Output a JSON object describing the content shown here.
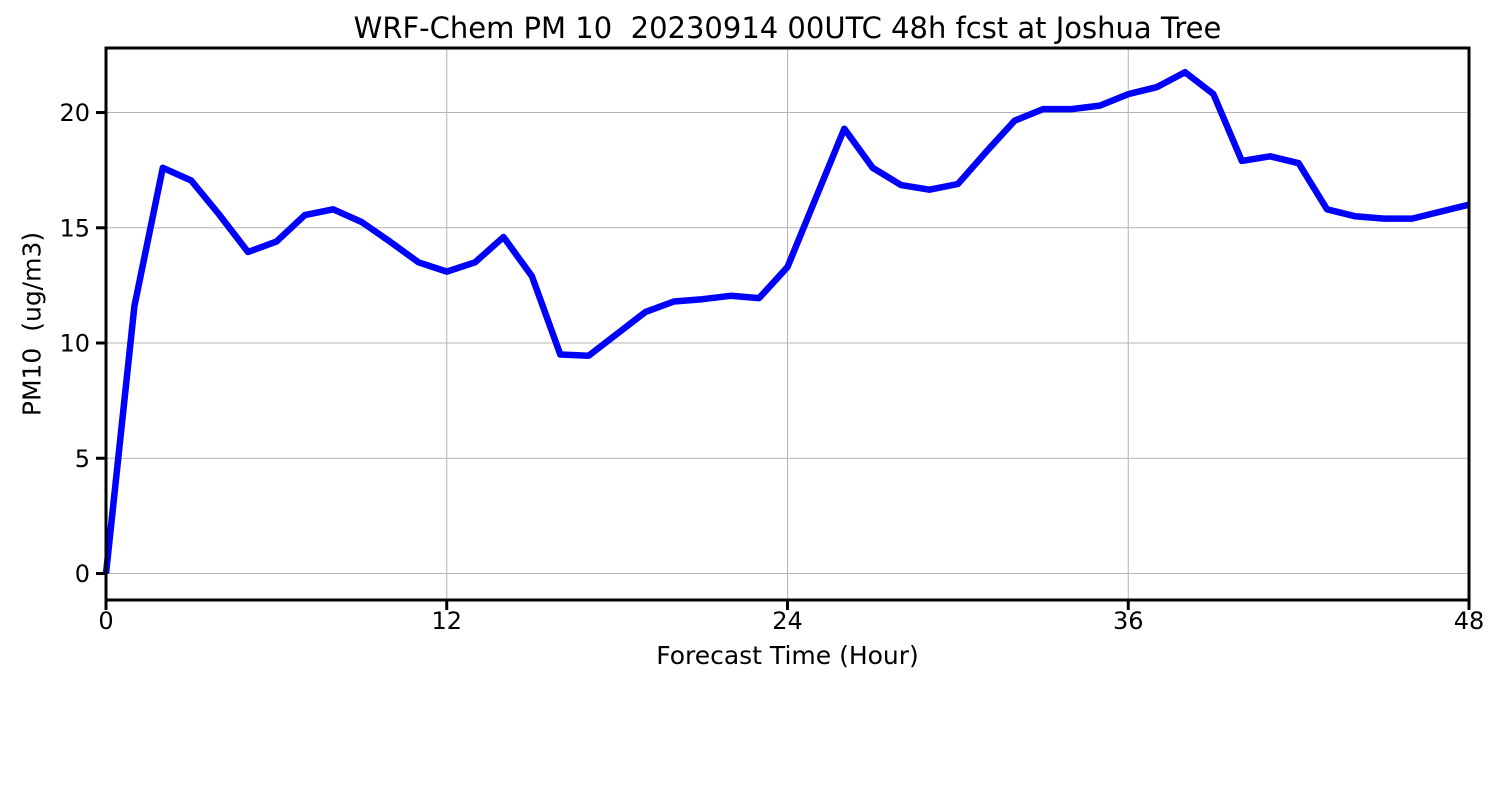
{
  "chart_data": {
    "type": "line",
    "title": "WRF-Chem PM 10  20230914 00UTC 48h fcst at Joshua Tree",
    "xlabel": "Forecast Time (Hour)",
    "ylabel": "PM10  (ug/m3)",
    "x": [
      0,
      1,
      2,
      3,
      4,
      5,
      6,
      7,
      8,
      9,
      10,
      11,
      12,
      13,
      14,
      15,
      16,
      17,
      18,
      19,
      20,
      21,
      22,
      23,
      24,
      25,
      26,
      27,
      28,
      29,
      30,
      31,
      32,
      33,
      34,
      35,
      36,
      37,
      38,
      39,
      40,
      41,
      42,
      43,
      44,
      45,
      46,
      47,
      48
    ],
    "values": [
      0,
      11.6,
      17.6,
      17.05,
      15.55,
      13.95,
      14.4,
      15.55,
      15.8,
      15.25,
      14.4,
      13.5,
      13.1,
      13.5,
      14.6,
      12.9,
      9.5,
      9.45,
      10.4,
      11.35,
      11.8,
      11.9,
      12.05,
      11.95,
      13.3,
      16.3,
      19.3,
      17.6,
      16.85,
      16.65,
      16.9,
      18.3,
      19.65,
      20.15,
      20.15,
      20.3,
      20.8,
      21.1,
      21.75,
      20.8,
      17.9,
      18.1,
      17.8,
      15.8,
      15.5,
      15.4,
      15.4,
      15.7,
      16.0
    ],
    "xticks": [
      0,
      12,
      24,
      36,
      48
    ],
    "yticks": [
      0,
      5,
      10,
      15,
      20
    ],
    "xlim": [
      0,
      48
    ],
    "ylim": [
      -1.15,
      22.8
    ],
    "grid": true,
    "legend_position": "none",
    "line_color": "#0000ff",
    "grid_color": "#b4b4b4",
    "spine_color": "#000000",
    "background": "#ffffff"
  }
}
